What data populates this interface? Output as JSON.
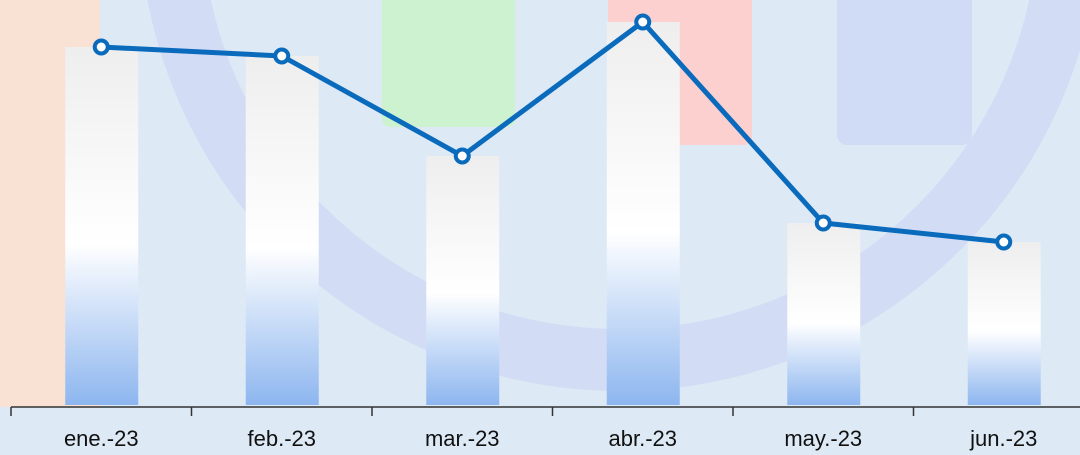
{
  "chart_data": {
    "type": "bar",
    "line": true,
    "categories": [
      "ene.-23",
      "feb.-23",
      "mar.-23",
      "abr.-23",
      "may.-23",
      "jun.-23"
    ],
    "values": [
      358,
      349,
      249,
      383,
      182,
      163
    ],
    "color": "#0a6bbd",
    "ylim": [
      0,
      400
    ]
  }
}
